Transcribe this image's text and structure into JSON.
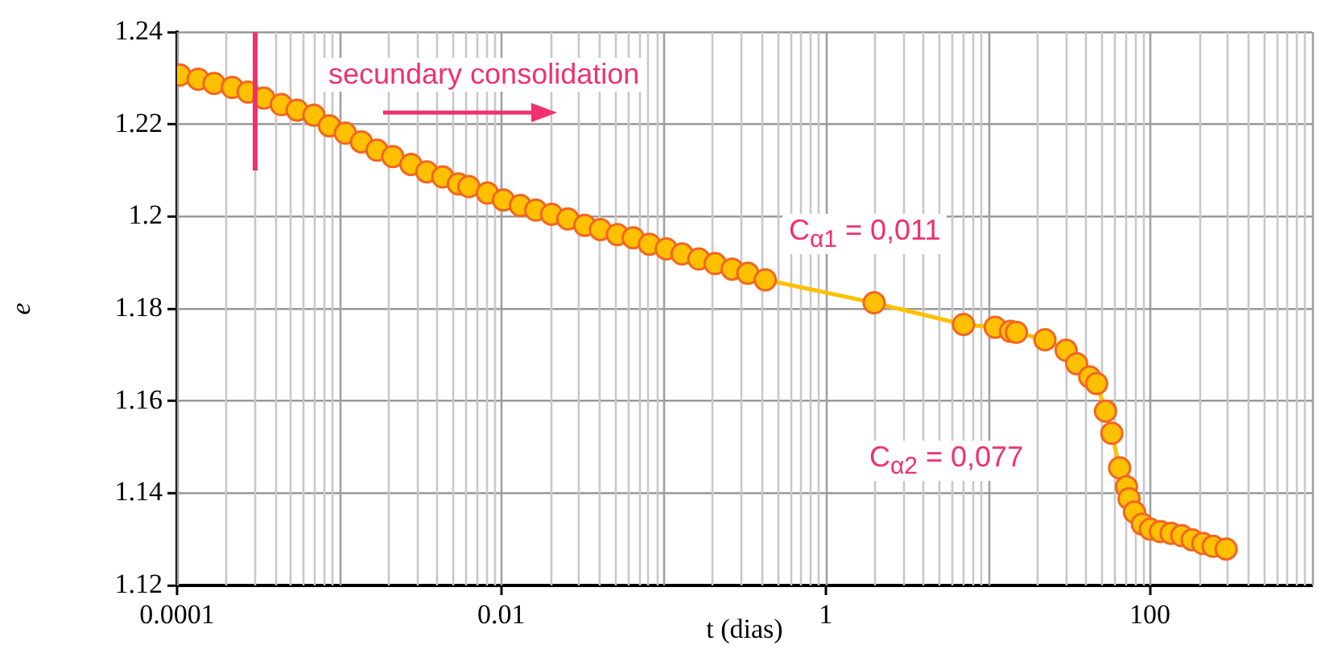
{
  "chart_data": {
    "type": "line",
    "xlabel": "t (dias)",
    "ylabel": "e",
    "log": "x",
    "grid": true,
    "marker": "circle",
    "line_style": "solid",
    "xlim": [
      0.0001,
      1000
    ],
    "xticks": [
      0.0001,
      0.01,
      1,
      100
    ],
    "ylim": [
      1.12,
      1.24
    ],
    "yticks": [
      1.12,
      1.14,
      1.16,
      1.18,
      1.2,
      1.22,
      1.24
    ],
    "annotations": [
      "secundary consolidation",
      "C$_{α1}$ = 0,011",
      "C$_{α2}$ = 0,077"
    ],
    "series": [
      {
        "color": "#ffc000",
        "x": [
          0.000104,
          0.000135,
          0.000169,
          0.000219,
          0.000274,
          0.000343,
          0.000439,
          0.00055,
          0.000698,
          0.00087,
          0.00109,
          0.00137,
          0.00171,
          0.00214,
          0.00277,
          0.00347,
          0.00435,
          0.00543,
          0.0063,
          0.0082,
          0.0103,
          0.0131,
          0.0163,
          0.0204,
          0.0257,
          0.0327,
          0.0408,
          0.0519,
          0.065,
          0.0819,
          0.104,
          0.13,
          0.165,
          0.208,
          0.265,
          0.331,
          0.424,
          1.99,
          7.08,
          11.1,
          13.8,
          15,
          22.5,
          30.4,
          35.3,
          42.5,
          46.9,
          53.2,
          58.2,
          65,
          71.6,
          74.3,
          80.2,
          89.7,
          100.5,
          116,
          135,
          157,
          182,
          212,
          245,
          295
        ],
        "values": [
          1.2307,
          1.2298,
          1.2289,
          1.228,
          1.227,
          1.2257,
          1.2243,
          1.2231,
          1.222,
          1.2197,
          1.2181,
          1.2162,
          1.2144,
          1.213,
          1.2113,
          1.2097,
          1.2086,
          1.2071,
          1.2065,
          1.2051,
          1.2036,
          1.2024,
          1.2014,
          1.2005,
          1.1995,
          1.1981,
          1.1972,
          1.1961,
          1.1954,
          1.194,
          1.193,
          1.1919,
          1.1908,
          1.1898,
          1.1886,
          1.1877,
          1.1863,
          1.1813,
          1.1766,
          1.176,
          1.1751,
          1.1749,
          1.1733,
          1.171,
          1.1681,
          1.1652,
          1.1638,
          1.1578,
          1.153,
          1.1455,
          1.1414,
          1.1388,
          1.1359,
          1.1333,
          1.1322,
          1.1317,
          1.1313,
          1.1308,
          1.1299,
          1.1291,
          1.1285,
          1.1279
        ]
      }
    ]
  }
}
